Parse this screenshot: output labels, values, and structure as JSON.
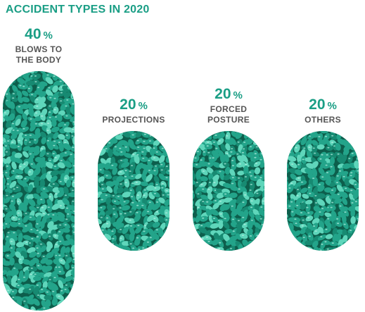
{
  "colors": {
    "accent": "#1a9e85",
    "pill_fill": "#23a48a",
    "pill_dark": "#0d5e4c",
    "pill_light": "#5fd6bb",
    "label": "#555555"
  },
  "chart_data": {
    "type": "bar",
    "title": "ACCIDENT TYPES IN 2020",
    "categories": [
      [
        "BLOWS TO",
        "THE BODY"
      ],
      [
        "PROJECTIONS"
      ],
      [
        "FORCED",
        "POSTURE"
      ],
      [
        "OTHERS"
      ]
    ],
    "values": [
      40,
      20,
      20,
      20
    ],
    "value_suffix": "%",
    "ylim": [
      0,
      40
    ],
    "grid": false,
    "legend": "none"
  }
}
